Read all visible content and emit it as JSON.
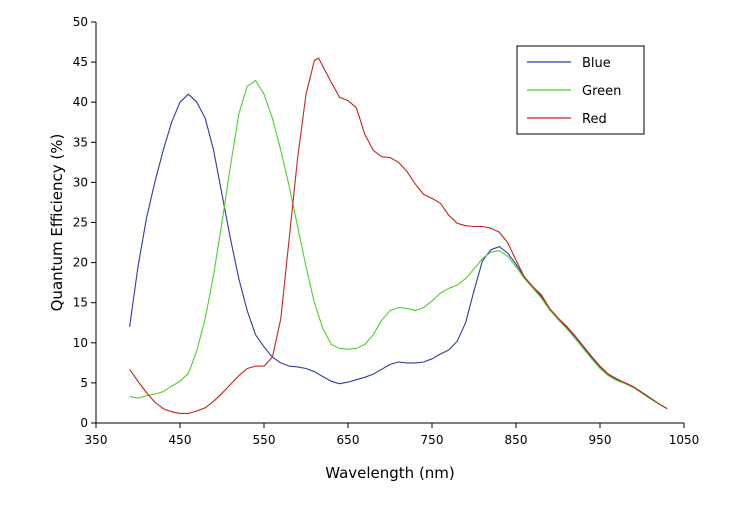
{
  "chart_data": {
    "type": "line",
    "title": "",
    "xlabel": "Wavelength (nm)",
    "ylabel": "Quantum Efficiency (%)",
    "xlim": [
      350,
      1050
    ],
    "ylim": [
      0,
      50
    ],
    "xticks": [
      350,
      450,
      550,
      650,
      750,
      850,
      950,
      1050
    ],
    "yticks": [
      0,
      5,
      10,
      15,
      20,
      25,
      30,
      35,
      40,
      45,
      50
    ],
    "grid": false,
    "legend_position": "top-right",
    "series": [
      {
        "name": "Blue",
        "color": "#2e3d9e",
        "x": [
          390,
          400,
          410,
          420,
          430,
          440,
          450,
          460,
          470,
          480,
          490,
          500,
          510,
          520,
          530,
          540,
          550,
          560,
          570,
          580,
          590,
          600,
          610,
          620,
          630,
          640,
          650,
          660,
          670,
          680,
          690,
          700,
          710,
          720,
          730,
          740,
          750,
          760,
          770,
          780,
          790,
          800,
          810,
          820,
          830,
          840,
          850,
          860,
          870,
          880,
          890,
          900,
          910,
          920,
          930,
          940,
          950,
          960,
          970,
          980,
          990,
          1000,
          1010,
          1020,
          1030
        ],
        "y": [
          12,
          19.5,
          25.5,
          30,
          34,
          37.5,
          40,
          41,
          40,
          38,
          34,
          28.5,
          23,
          18,
          14,
          11,
          9.5,
          8.2,
          7.5,
          7.1,
          7,
          6.8,
          6.4,
          5.8,
          5.2,
          4.9,
          5.1,
          5.4,
          5.7,
          6.1,
          6.7,
          7.3,
          7.6,
          7.5,
          7.5,
          7.6,
          8,
          8.6,
          9.1,
          10.2,
          12.5,
          16.5,
          20.2,
          21.6,
          22,
          21.2,
          19.8,
          18.2,
          17,
          15.8,
          14.2,
          13,
          12,
          10.8,
          9.5,
          8.2,
          7,
          6,
          5.4,
          5,
          4.5,
          3.8,
          3.1,
          2.4,
          1.8
        ]
      },
      {
        "name": "Green",
        "color": "#4fcf2e",
        "x": [
          390,
          400,
          410,
          420,
          430,
          440,
          450,
          460,
          470,
          480,
          490,
          500,
          510,
          520,
          530,
          540,
          550,
          560,
          570,
          580,
          590,
          600,
          610,
          620,
          630,
          640,
          650,
          660,
          670,
          680,
          690,
          700,
          710,
          720,
          730,
          740,
          750,
          760,
          770,
          780,
          790,
          800,
          810,
          820,
          830,
          840,
          850,
          860,
          870,
          880,
          890,
          900,
          910,
          920,
          930,
          940,
          950,
          960,
          970,
          980,
          990,
          1000,
          1010,
          1020,
          1030
        ],
        "y": [
          3.3,
          3.1,
          3.4,
          3.6,
          3.9,
          4.6,
          5.2,
          6.2,
          9,
          13,
          18.5,
          25,
          32,
          38.5,
          42,
          42.7,
          41,
          38,
          34,
          29.5,
          24.5,
          19.5,
          15,
          11.8,
          9.8,
          9.3,
          9.2,
          9.3,
          9.8,
          11,
          12.8,
          14,
          14.4,
          14.3,
          14,
          14.4,
          15.2,
          16.2,
          16.8,
          17.2,
          18,
          19.2,
          20.5,
          21.3,
          21.5,
          20.8,
          19.5,
          18,
          16.8,
          15.6,
          14.1,
          12.9,
          11.8,
          10.6,
          9.3,
          8,
          6.8,
          5.9,
          5.3,
          4.9,
          4.4,
          3.7,
          3,
          2.4,
          1.8
        ]
      },
      {
        "name": "Red",
        "color": "#c4261e",
        "x": [
          390,
          400,
          410,
          420,
          430,
          440,
          450,
          460,
          470,
          480,
          490,
          500,
          510,
          520,
          530,
          540,
          550,
          560,
          570,
          580,
          590,
          600,
          610,
          615,
          620,
          630,
          640,
          650,
          660,
          670,
          680,
          690,
          700,
          710,
          720,
          730,
          740,
          750,
          760,
          770,
          780,
          790,
          800,
          810,
          820,
          830,
          840,
          850,
          860,
          870,
          880,
          890,
          900,
          910,
          920,
          930,
          940,
          950,
          960,
          970,
          980,
          990,
          1000,
          1010,
          1020,
          1030
        ],
        "y": [
          6.7,
          5.2,
          3.8,
          2.6,
          1.8,
          1.4,
          1.2,
          1.2,
          1.5,
          1.9,
          2.7,
          3.7,
          4.8,
          5.9,
          6.8,
          7.1,
          7.1,
          8.2,
          13,
          23,
          33,
          41,
          45.2,
          45.5,
          44.5,
          42.5,
          40.6,
          40.2,
          39.3,
          36,
          34,
          33.2,
          33.1,
          32.5,
          31.4,
          29.8,
          28.5,
          28,
          27.4,
          25.9,
          24.9,
          24.6,
          24.5,
          24.5,
          24.3,
          23.8,
          22.5,
          20.3,
          18.2,
          17,
          16,
          14.3,
          13.1,
          12.1,
          10.9,
          9.6,
          8.3,
          7.1,
          6.1,
          5.5,
          5,
          4.5,
          3.8,
          3.1,
          2.4,
          1.8
        ]
      }
    ]
  }
}
